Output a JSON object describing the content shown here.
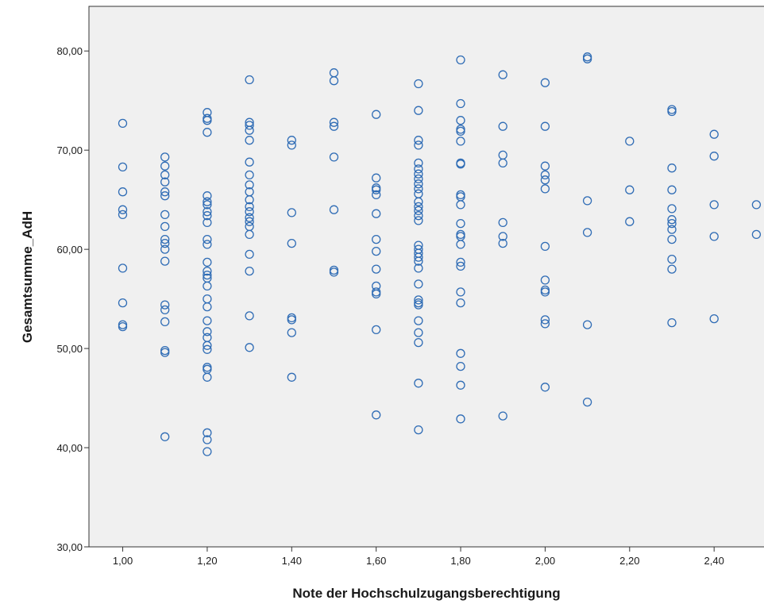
{
  "chart_data": {
    "type": "scatter",
    "xlabel": "Note der Hochschulzugangsberechtigung",
    "ylabel": "Gesamtsumme_AdH",
    "xlim": [
      0.92,
      2.52
    ],
    "ylim": [
      30,
      84.5
    ],
    "x_ticks": [
      {
        "value": 1.0,
        "label": "1,00"
      },
      {
        "value": 1.2,
        "label": "1,20"
      },
      {
        "value": 1.4,
        "label": "1,40"
      },
      {
        "value": 1.6,
        "label": "1,60"
      },
      {
        "value": 1.8,
        "label": "1,80"
      },
      {
        "value": 2.0,
        "label": "2,00"
      },
      {
        "value": 2.2,
        "label": "2,20"
      },
      {
        "value": 2.4,
        "label": "2,40"
      }
    ],
    "y_ticks": [
      {
        "value": 30,
        "label": "30,00"
      },
      {
        "value": 40,
        "label": "40,00"
      },
      {
        "value": 50,
        "label": "50,00"
      },
      {
        "value": 60,
        "label": "60,00"
      },
      {
        "value": 70,
        "label": "70,00"
      },
      {
        "value": 80,
        "label": "80,00"
      }
    ],
    "grid": false,
    "marker_color": "#2f6cb5",
    "plot_background": "#f0f0f0",
    "points": [
      [
        1.0,
        72.7
      ],
      [
        1.0,
        68.3
      ],
      [
        1.0,
        65.8
      ],
      [
        1.0,
        64.0
      ],
      [
        1.0,
        63.5
      ],
      [
        1.0,
        58.1
      ],
      [
        1.0,
        54.6
      ],
      [
        1.0,
        52.4
      ],
      [
        1.0,
        52.2
      ],
      [
        1.1,
        69.3
      ],
      [
        1.1,
        68.4
      ],
      [
        1.1,
        67.5
      ],
      [
        1.1,
        66.8
      ],
      [
        1.1,
        65.8
      ],
      [
        1.1,
        65.4
      ],
      [
        1.1,
        63.5
      ],
      [
        1.1,
        62.3
      ],
      [
        1.1,
        61.0
      ],
      [
        1.1,
        60.6
      ],
      [
        1.1,
        60.0
      ],
      [
        1.1,
        58.8
      ],
      [
        1.1,
        54.4
      ],
      [
        1.1,
        53.9
      ],
      [
        1.1,
        52.7
      ],
      [
        1.1,
        49.8
      ],
      [
        1.1,
        49.6
      ],
      [
        1.1,
        41.1
      ],
      [
        1.2,
        73.8
      ],
      [
        1.2,
        73.2
      ],
      [
        1.2,
        73.0
      ],
      [
        1.2,
        71.8
      ],
      [
        1.2,
        65.4
      ],
      [
        1.2,
        64.8
      ],
      [
        1.2,
        64.5
      ],
      [
        1.2,
        63.8
      ],
      [
        1.2,
        63.4
      ],
      [
        1.2,
        62.7
      ],
      [
        1.2,
        61.0
      ],
      [
        1.2,
        60.5
      ],
      [
        1.2,
        58.7
      ],
      [
        1.2,
        57.8
      ],
      [
        1.2,
        57.4
      ],
      [
        1.2,
        57.1
      ],
      [
        1.2,
        56.3
      ],
      [
        1.2,
        55.0
      ],
      [
        1.2,
        54.2
      ],
      [
        1.2,
        52.8
      ],
      [
        1.2,
        51.7
      ],
      [
        1.2,
        51.1
      ],
      [
        1.2,
        50.3
      ],
      [
        1.2,
        49.9
      ],
      [
        1.2,
        48.1
      ],
      [
        1.2,
        47.9
      ],
      [
        1.2,
        47.1
      ],
      [
        1.2,
        41.5
      ],
      [
        1.2,
        40.8
      ],
      [
        1.2,
        39.6
      ],
      [
        1.3,
        77.1
      ],
      [
        1.3,
        72.8
      ],
      [
        1.3,
        72.5
      ],
      [
        1.3,
        72.0
      ],
      [
        1.3,
        71.0
      ],
      [
        1.3,
        68.8
      ],
      [
        1.3,
        67.5
      ],
      [
        1.3,
        66.5
      ],
      [
        1.3,
        65.8
      ],
      [
        1.3,
        65.0
      ],
      [
        1.3,
        64.3
      ],
      [
        1.3,
        63.8
      ],
      [
        1.3,
        63.2
      ],
      [
        1.3,
        62.8
      ],
      [
        1.3,
        62.3
      ],
      [
        1.3,
        61.5
      ],
      [
        1.3,
        59.5
      ],
      [
        1.3,
        57.8
      ],
      [
        1.3,
        53.3
      ],
      [
        1.3,
        50.1
      ],
      [
        1.4,
        71.0
      ],
      [
        1.4,
        70.5
      ],
      [
        1.4,
        63.7
      ],
      [
        1.4,
        60.6
      ],
      [
        1.4,
        53.1
      ],
      [
        1.4,
        52.9
      ],
      [
        1.4,
        51.6
      ],
      [
        1.4,
        47.1
      ],
      [
        1.5,
        77.8
      ],
      [
        1.5,
        77.0
      ],
      [
        1.5,
        72.8
      ],
      [
        1.5,
        72.4
      ],
      [
        1.5,
        69.3
      ],
      [
        1.5,
        64.0
      ],
      [
        1.5,
        57.9
      ],
      [
        1.5,
        57.7
      ],
      [
        1.6,
        73.6
      ],
      [
        1.6,
        67.2
      ],
      [
        1.6,
        66.2
      ],
      [
        1.6,
        66.0
      ],
      [
        1.6,
        65.5
      ],
      [
        1.6,
        63.6
      ],
      [
        1.6,
        61.0
      ],
      [
        1.6,
        59.8
      ],
      [
        1.6,
        58.0
      ],
      [
        1.6,
        56.3
      ],
      [
        1.6,
        55.7
      ],
      [
        1.6,
        55.5
      ],
      [
        1.6,
        51.9
      ],
      [
        1.6,
        43.3
      ],
      [
        1.7,
        76.7
      ],
      [
        1.7,
        74.0
      ],
      [
        1.7,
        71.0
      ],
      [
        1.7,
        70.5
      ],
      [
        1.7,
        68.7
      ],
      [
        1.7,
        68.1
      ],
      [
        1.7,
        67.6
      ],
      [
        1.7,
        67.1
      ],
      [
        1.7,
        66.6
      ],
      [
        1.7,
        66.1
      ],
      [
        1.7,
        65.6
      ],
      [
        1.7,
        64.8
      ],
      [
        1.7,
        64.3
      ],
      [
        1.7,
        63.9
      ],
      [
        1.7,
        63.4
      ],
      [
        1.7,
        62.9
      ],
      [
        1.7,
        60.4
      ],
      [
        1.7,
        60.0
      ],
      [
        1.7,
        59.6
      ],
      [
        1.7,
        59.2
      ],
      [
        1.7,
        58.8
      ],
      [
        1.7,
        58.1
      ],
      [
        1.7,
        56.5
      ],
      [
        1.7,
        54.9
      ],
      [
        1.7,
        54.6
      ],
      [
        1.7,
        54.4
      ],
      [
        1.7,
        52.8
      ],
      [
        1.7,
        51.6
      ],
      [
        1.7,
        50.6
      ],
      [
        1.7,
        46.5
      ],
      [
        1.7,
        41.8
      ],
      [
        1.8,
        79.1
      ],
      [
        1.8,
        74.7
      ],
      [
        1.8,
        73.0
      ],
      [
        1.8,
        72.1
      ],
      [
        1.8,
        71.9
      ],
      [
        1.8,
        70.9
      ],
      [
        1.8,
        68.7
      ],
      [
        1.8,
        68.6
      ],
      [
        1.8,
        65.5
      ],
      [
        1.8,
        65.3
      ],
      [
        1.8,
        64.5
      ],
      [
        1.8,
        62.6
      ],
      [
        1.8,
        61.5
      ],
      [
        1.8,
        61.3
      ],
      [
        1.8,
        60.5
      ],
      [
        1.8,
        58.7
      ],
      [
        1.8,
        58.3
      ],
      [
        1.8,
        55.7
      ],
      [
        1.8,
        54.6
      ],
      [
        1.8,
        49.5
      ],
      [
        1.8,
        48.2
      ],
      [
        1.8,
        46.3
      ],
      [
        1.8,
        42.9
      ],
      [
        1.9,
        77.6
      ],
      [
        1.9,
        72.4
      ],
      [
        1.9,
        69.5
      ],
      [
        1.9,
        68.7
      ],
      [
        1.9,
        62.7
      ],
      [
        1.9,
        61.3
      ],
      [
        1.9,
        60.6
      ],
      [
        1.9,
        43.2
      ],
      [
        2.0,
        76.8
      ],
      [
        2.0,
        72.4
      ],
      [
        2.0,
        68.4
      ],
      [
        2.0,
        67.5
      ],
      [
        2.0,
        67.0
      ],
      [
        2.0,
        66.1
      ],
      [
        2.0,
        60.3
      ],
      [
        2.0,
        56.9
      ],
      [
        2.0,
        55.9
      ],
      [
        2.0,
        55.7
      ],
      [
        2.0,
        52.9
      ],
      [
        2.0,
        52.5
      ],
      [
        2.0,
        46.1
      ],
      [
        2.1,
        79.4
      ],
      [
        2.1,
        79.2
      ],
      [
        2.1,
        64.9
      ],
      [
        2.1,
        61.7
      ],
      [
        2.1,
        52.4
      ],
      [
        2.1,
        44.6
      ],
      [
        2.2,
        70.9
      ],
      [
        2.2,
        66.0
      ],
      [
        2.2,
        62.8
      ],
      [
        2.3,
        74.1
      ],
      [
        2.3,
        73.9
      ],
      [
        2.3,
        68.2
      ],
      [
        2.3,
        66.0
      ],
      [
        2.3,
        64.1
      ],
      [
        2.3,
        63.0
      ],
      [
        2.3,
        62.6
      ],
      [
        2.3,
        62.0
      ],
      [
        2.3,
        61.0
      ],
      [
        2.3,
        59.0
      ],
      [
        2.3,
        58.0
      ],
      [
        2.3,
        52.6
      ],
      [
        2.4,
        71.6
      ],
      [
        2.4,
        69.4
      ],
      [
        2.4,
        64.5
      ],
      [
        2.4,
        61.3
      ],
      [
        2.4,
        53.0
      ],
      [
        2.5,
        64.5
      ],
      [
        2.5,
        61.5
      ]
    ]
  }
}
